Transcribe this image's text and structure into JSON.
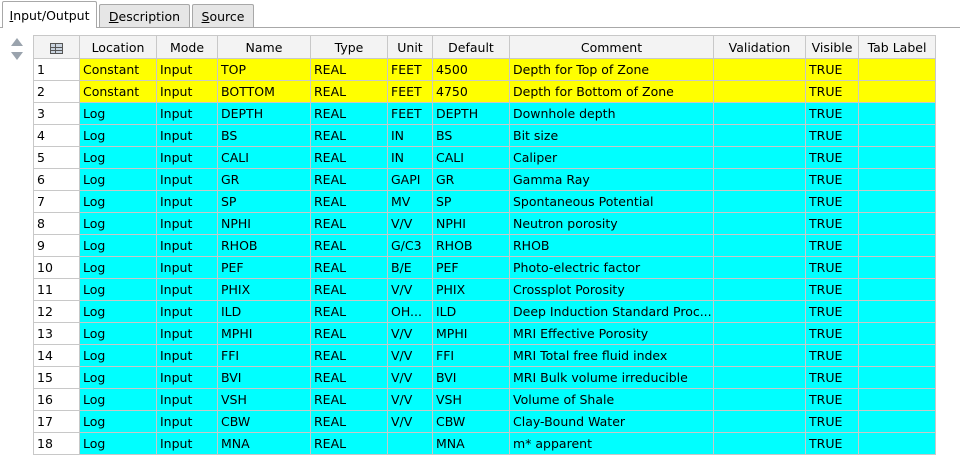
{
  "tabs": [
    {
      "label": "Input/Output",
      "mnemonic": "I",
      "rest": "nput/Output",
      "active": true
    },
    {
      "label": "Description",
      "mnemonic": "D",
      "rest": "escription",
      "active": false
    },
    {
      "label": "Source",
      "mnemonic": "S",
      "rest": "ource",
      "active": false
    }
  ],
  "table": {
    "corner_icon": "grid-table-icon",
    "columns": [
      "Location",
      "Mode",
      "Name",
      "Type",
      "Unit",
      "Default",
      "Comment",
      "Validation",
      "Visible",
      "Tab Label"
    ],
    "row_colors": {
      "yellow": "#ffff00",
      "cyan": "#00ffff"
    },
    "rows": [
      {
        "num": "1",
        "color": "yellow",
        "cells": [
          "Constant",
          "Input",
          "TOP",
          "REAL",
          "FEET",
          "4500",
          "Depth for Top of Zone",
          "",
          "TRUE",
          ""
        ]
      },
      {
        "num": "2",
        "color": "yellow",
        "cells": [
          "Constant",
          "Input",
          "BOTTOM",
          "REAL",
          "FEET",
          "4750",
          "Depth for Bottom of Zone",
          "",
          "TRUE",
          ""
        ]
      },
      {
        "num": "3",
        "color": "cyan",
        "cells": [
          "Log",
          "Input",
          "DEPTH",
          "REAL",
          "FEET",
          "DEPTH",
          "Downhole depth",
          "",
          "TRUE",
          ""
        ]
      },
      {
        "num": "4",
        "color": "cyan",
        "cells": [
          "Log",
          "Input",
          "BS",
          "REAL",
          "IN",
          "BS",
          "Bit size",
          "",
          "TRUE",
          ""
        ]
      },
      {
        "num": "5",
        "color": "cyan",
        "cells": [
          "Log",
          "Input",
          "CALI",
          "REAL",
          "IN",
          "CALI",
          "Caliper",
          "",
          "TRUE",
          ""
        ]
      },
      {
        "num": "6",
        "color": "cyan",
        "cells": [
          "Log",
          "Input",
          "GR",
          "REAL",
          "GAPI",
          "GR",
          "Gamma Ray",
          "",
          "TRUE",
          ""
        ]
      },
      {
        "num": "7",
        "color": "cyan",
        "cells": [
          "Log",
          "Input",
          "SP",
          "REAL",
          "MV",
          "SP",
          "Spontaneous Potential",
          "",
          "TRUE",
          ""
        ]
      },
      {
        "num": "8",
        "color": "cyan",
        "cells": [
          "Log",
          "Input",
          "NPHI",
          "REAL",
          "V/V",
          "NPHI",
          "Neutron porosity",
          "",
          "TRUE",
          ""
        ]
      },
      {
        "num": "9",
        "color": "cyan",
        "cells": [
          "Log",
          "Input",
          "RHOB",
          "REAL",
          "G/C3",
          "RHOB",
          "RHOB",
          "",
          "TRUE",
          ""
        ]
      },
      {
        "num": "10",
        "color": "cyan",
        "cells": [
          "Log",
          "Input",
          "PEF",
          "REAL",
          "B/E",
          "PEF",
          "Photo-electric factor",
          "",
          "TRUE",
          ""
        ]
      },
      {
        "num": "11",
        "color": "cyan",
        "cells": [
          "Log",
          "Input",
          "PHIX",
          "REAL",
          "V/V",
          "PHIX",
          "Crossplot Porosity",
          "",
          "TRUE",
          ""
        ]
      },
      {
        "num": "12",
        "color": "cyan",
        "cells": [
          "Log",
          "Input",
          "ILD",
          "REAL",
          "OH...",
          "ILD",
          "Deep Induction Standard Proc...",
          "",
          "TRUE",
          ""
        ]
      },
      {
        "num": "13",
        "color": "cyan",
        "cells": [
          "Log",
          "Input",
          "MPHI",
          "REAL",
          "V/V",
          "MPHI",
          "MRI Effective Porosity",
          "",
          "TRUE",
          ""
        ]
      },
      {
        "num": "14",
        "color": "cyan",
        "cells": [
          "Log",
          "Input",
          "FFI",
          "REAL",
          "V/V",
          "FFI",
          "MRI Total free fluid index",
          "",
          "TRUE",
          ""
        ]
      },
      {
        "num": "15",
        "color": "cyan",
        "cells": [
          "Log",
          "Input",
          "BVI",
          "REAL",
          "V/V",
          "BVI",
          "MRI Bulk volume irreducible",
          "",
          "TRUE",
          ""
        ]
      },
      {
        "num": "16",
        "color": "cyan",
        "cells": [
          "Log",
          "Input",
          "VSH",
          "REAL",
          "V/V",
          "VSH",
          "Volume of Shale",
          "",
          "TRUE",
          ""
        ]
      },
      {
        "num": "17",
        "color": "cyan",
        "cells": [
          "Log",
          "Input",
          "CBW",
          "REAL",
          "V/V",
          "CBW",
          "Clay-Bound Water",
          "",
          "TRUE",
          ""
        ]
      },
      {
        "num": "18",
        "color": "cyan",
        "cells": [
          "Log",
          "Input",
          "MNA",
          "REAL",
          "",
          "MNA",
          "m* apparent",
          "",
          "TRUE",
          ""
        ]
      }
    ]
  }
}
